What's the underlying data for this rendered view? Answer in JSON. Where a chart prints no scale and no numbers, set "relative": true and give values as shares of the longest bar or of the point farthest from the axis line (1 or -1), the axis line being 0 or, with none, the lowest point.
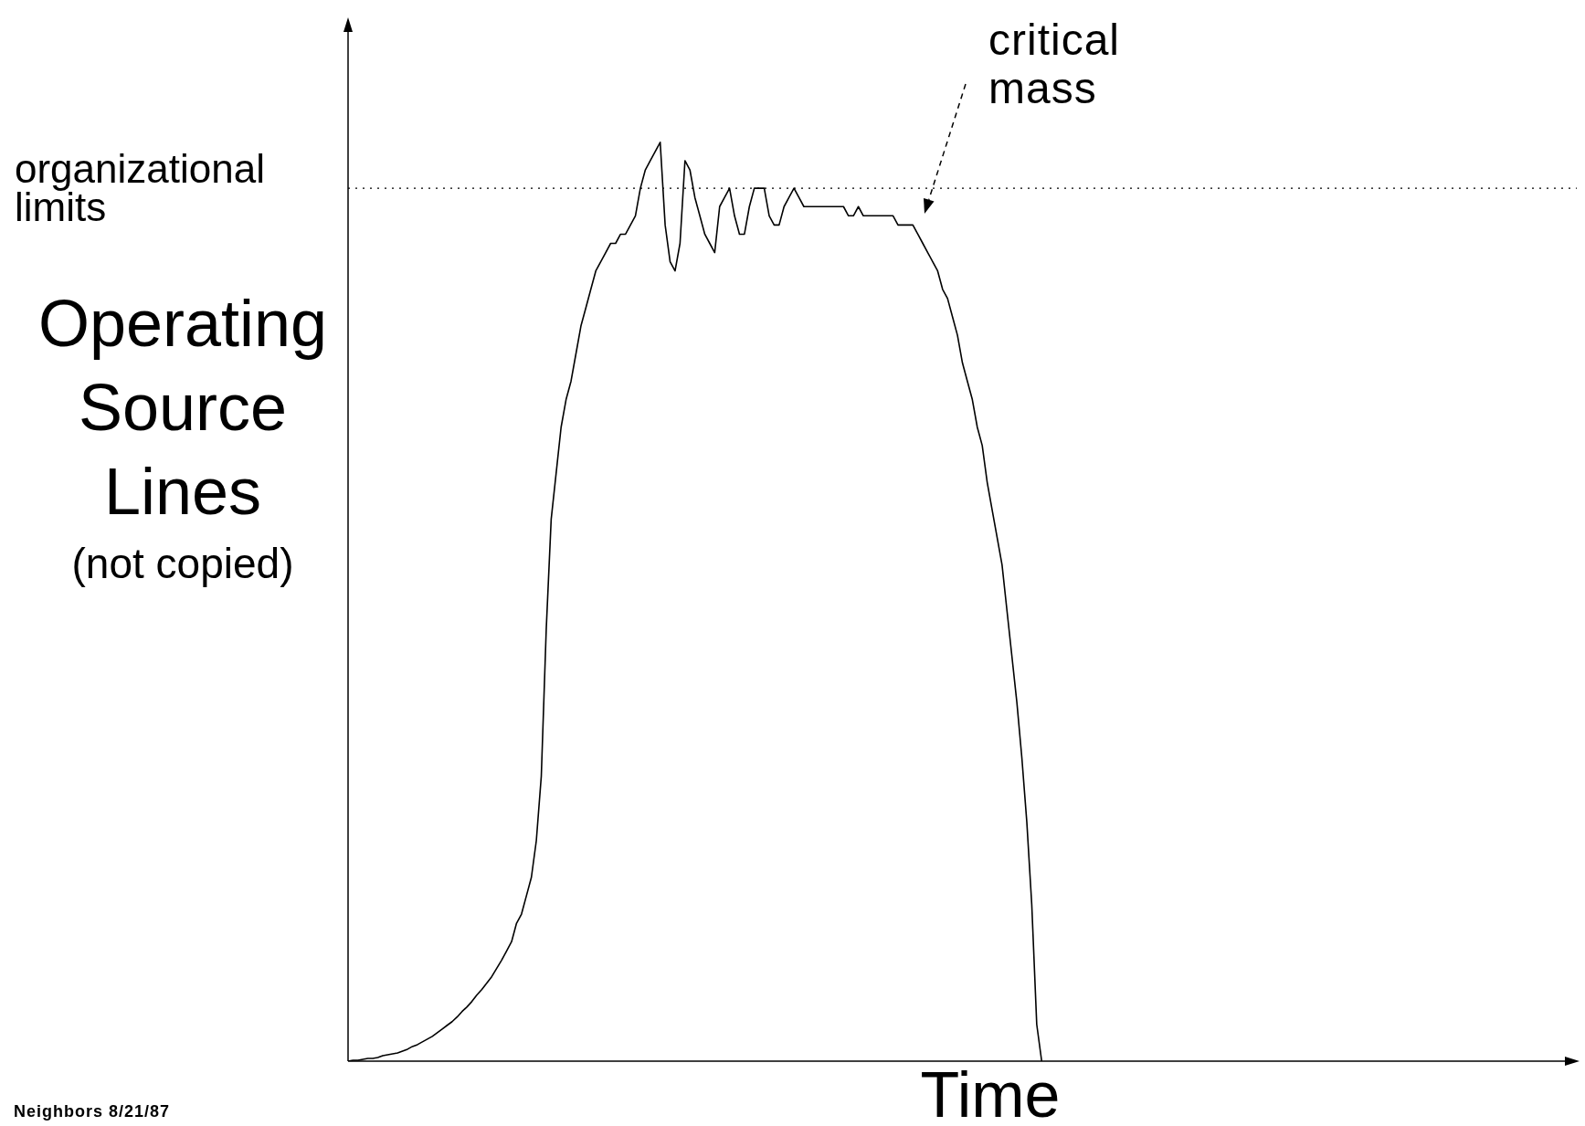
{
  "chart_data": {
    "type": "line",
    "relative": true,
    "xlabel": "Time",
    "ylabel": "Operating\nSource\nLines\n(not copied)",
    "categories": [
      null,
      null,
      null,
      null,
      null,
      null,
      null,
      null,
      null,
      null,
      null,
      null,
      null,
      null,
      null,
      null,
      null,
      null,
      null,
      null,
      null,
      null,
      null,
      null,
      null,
      null,
      null,
      null,
      null,
      null,
      null,
      null,
      null,
      null,
      null,
      null,
      null,
      null,
      null,
      null,
      null,
      null,
      null,
      null,
      null,
      null,
      null,
      null,
      null,
      null,
      null,
      null,
      null,
      null,
      null,
      null,
      null,
      null,
      null,
      null,
      null,
      null,
      null,
      null,
      null,
      null,
      null,
      null,
      null,
      null,
      null,
      null,
      null,
      null,
      null,
      null,
      null,
      null,
      null,
      null,
      null,
      null,
      null,
      null,
      null,
      null,
      null,
      null,
      null,
      null,
      null,
      null,
      null,
      null,
      null,
      null,
      null,
      null,
      null,
      null,
      null,
      null,
      null,
      null,
      null,
      null,
      null,
      null,
      null,
      null,
      null,
      null,
      null,
      null,
      null,
      null,
      null,
      null,
      null,
      null,
      null,
      null,
      null,
      null,
      null,
      null,
      null,
      null,
      null,
      null,
      null,
      null,
      null,
      null,
      null,
      null,
      null,
      null,
      null,
      null,
      null,
      null,
      null,
      null,
      null,
      null,
      null,
      null,
      null,
      null,
      null,
      null,
      null,
      null,
      null,
      null,
      null,
      null,
      null,
      null,
      null,
      null,
      null,
      null,
      null,
      null,
      null,
      null,
      null,
      null,
      null,
      null,
      null,
      null,
      null,
      null,
      null,
      null,
      null,
      null,
      null,
      null,
      null,
      null,
      null,
      null,
      null,
      null,
      null,
      null,
      null,
      null,
      null,
      null,
      null,
      null,
      null,
      null,
      null,
      null,
      null,
      null,
      null,
      null,
      null,
      null,
      null,
      null,
      null,
      null,
      null,
      null,
      null,
      null,
      null,
      null,
      null,
      null,
      null,
      null,
      null,
      null,
      null,
      null,
      null,
      null,
      null,
      null,
      null,
      null,
      null,
      null,
      null,
      null,
      null,
      null,
      null,
      null,
      null,
      null,
      null,
      null,
      null,
      null,
      null,
      null,
      null,
      null,
      null
    ],
    "series": [
      {
        "color": "#000000",
        "values": [
          0,
          0.001,
          0.001,
          0.002,
          0.003,
          0.003,
          0.004,
          0.006,
          0.007,
          0.008,
          0.009,
          0.011,
          0.013,
          0.016,
          0.018,
          0.021,
          0.024,
          0.027,
          0.031,
          0.035,
          0.039,
          0.043,
          0.048,
          0.054,
          0.059,
          0.065,
          0.072,
          0.078,
          0.085,
          0.092,
          0.101,
          0.11,
          0.12,
          0.13,
          0.15,
          0.16,
          0.18,
          0.2,
          0.24,
          0.31,
          0.47,
          0.59,
          0.64,
          0.69,
          0.72,
          0.74,
          0.77,
          0.8,
          0.82,
          0.84,
          0.86,
          0.87,
          0.88,
          0.89,
          0.89,
          0.9,
          0.9,
          0.91,
          0.92,
          0.95,
          0.97,
          0.98,
          0.99,
          1,
          0.91,
          0.87,
          0.86,
          0.89,
          0.98,
          0.97,
          0.94,
          0.92,
          0.9,
          0.89,
          0.88,
          0.93,
          0.94,
          0.95,
          0.92,
          0.9,
          0.9,
          0.93,
          0.95,
          0.95,
          0.95,
          0.92,
          0.91,
          0.91,
          0.93,
          0.94,
          0.95,
          0.94,
          0.93,
          0.93,
          0.93,
          0.93,
          0.93,
          0.93,
          0.93,
          0.93,
          0.93,
          0.92,
          0.92,
          0.93,
          0.92,
          0.92,
          0.92,
          0.92,
          0.92,
          0.92,
          0.92,
          0.91,
          0.91,
          0.91,
          0.91,
          0.9,
          0.89,
          0.88,
          0.87,
          0.86,
          0.84,
          0.83,
          0.81,
          0.79,
          0.76,
          0.74,
          0.72,
          0.69,
          0.67,
          0.63,
          0.6,
          0.57,
          0.54,
          0.49,
          0.44,
          0.39,
          0.33,
          0.26,
          0.17,
          0.04,
          0,
          null,
          null,
          null,
          null,
          null,
          null,
          null,
          null,
          null,
          null,
          null,
          null,
          null,
          null,
          null,
          null,
          null,
          null,
          null,
          null,
          null,
          null,
          null,
          null,
          null,
          null,
          null,
          null,
          null,
          null,
          null,
          null,
          null,
          null,
          null,
          null,
          null,
          null,
          null,
          null,
          null,
          null,
          null,
          null,
          null,
          null,
          null,
          null,
          null,
          null,
          null,
          null,
          null,
          null,
          null,
          null,
          null,
          null,
          null,
          null,
          null,
          null,
          null,
          null,
          null,
          null,
          null,
          null,
          null,
          null,
          null,
          null,
          null,
          null,
          null,
          null,
          null,
          null,
          null,
          null,
          null,
          null,
          null,
          null,
          null,
          null,
          null,
          null,
          null,
          null,
          null,
          null,
          null,
          null,
          null,
          null,
          null,
          null,
          null,
          null,
          null,
          null,
          null,
          null,
          null,
          null,
          null,
          null
        ]
      }
    ],
    "ref_lines": [
      {
        "axis": "y",
        "value": 0.95,
        "label": "organizational limits",
        "line_style": "dotted",
        "color": "#000000"
      }
    ],
    "annotations": [
      "critical mass",
      "Neighbors 8/21/87"
    ],
    "legend": false,
    "marker": "none",
    "line_style": "solid"
  }
}
